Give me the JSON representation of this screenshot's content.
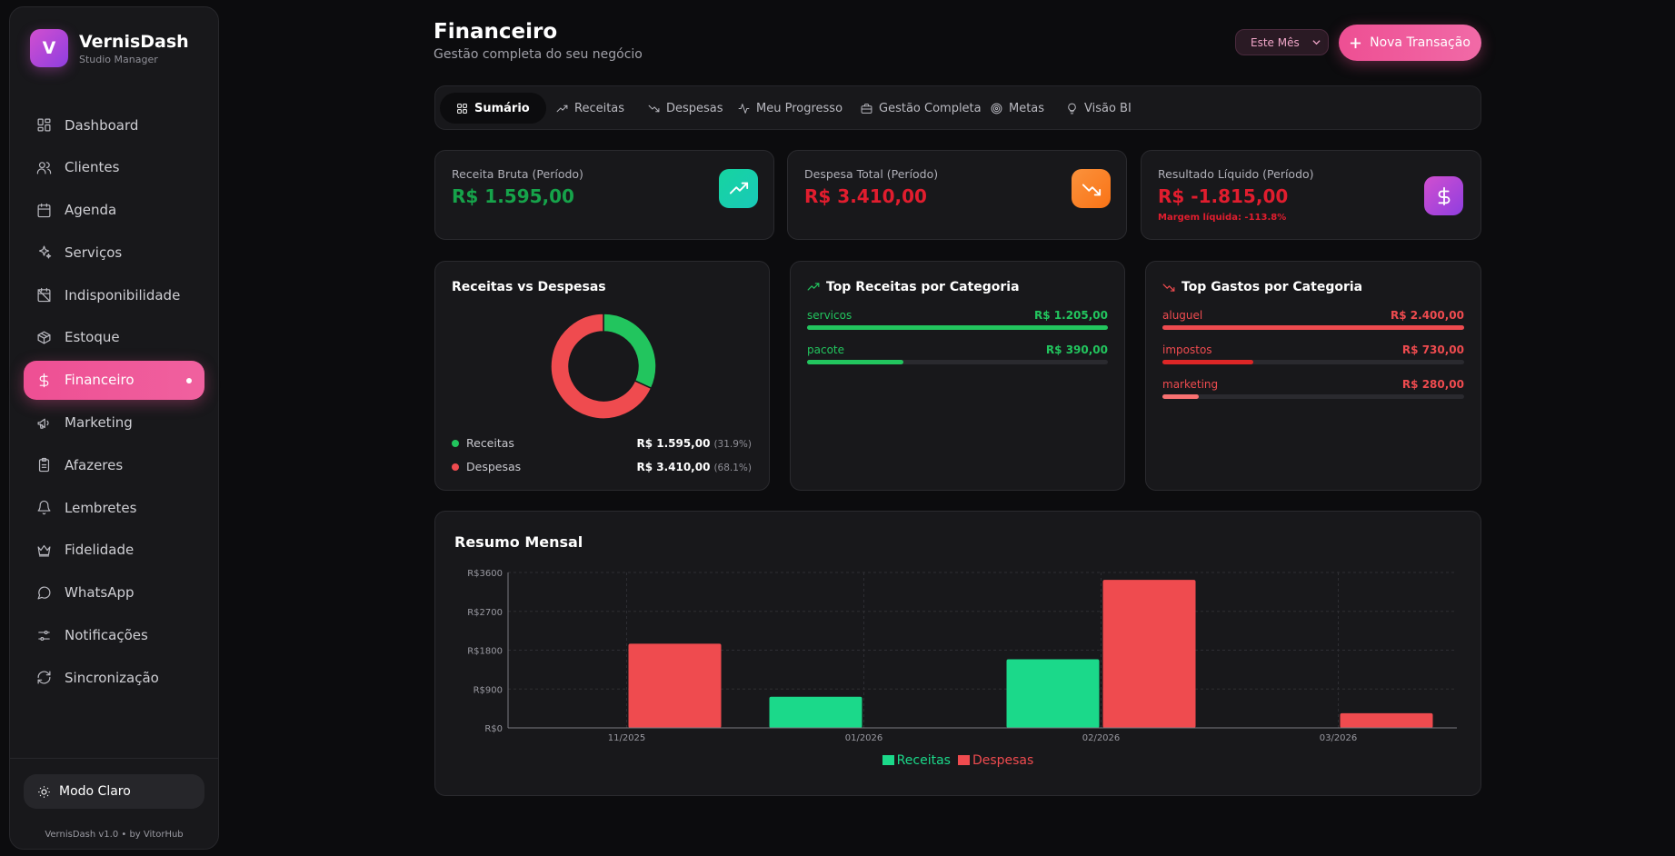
{
  "colors": {
    "accent": "#ee4f93",
    "income": "#1bd98a",
    "income_dark": "#22c55e",
    "expense": "#ef4b4f",
    "negative": "#e11d2e"
  },
  "brand": {
    "logo_letter": "V",
    "name": "VernisDash",
    "subtitle": "Studio Manager"
  },
  "sidebar": {
    "items": [
      {
        "label": "Dashboard",
        "icon": "grid-icon"
      },
      {
        "label": "Clientes",
        "icon": "users-icon"
      },
      {
        "label": "Agenda",
        "icon": "calendar-icon"
      },
      {
        "label": "Serviços",
        "icon": "sparkles-icon"
      },
      {
        "label": "Indisponibilidade",
        "icon": "calendar-off-icon"
      },
      {
        "label": "Estoque",
        "icon": "package-icon"
      },
      {
        "label": "Financeiro",
        "icon": "dollar-icon",
        "active": true
      },
      {
        "label": "Marketing",
        "icon": "megaphone-icon"
      },
      {
        "label": "Afazeres",
        "icon": "clipboard-icon"
      },
      {
        "label": "Lembretes",
        "icon": "bell-icon"
      },
      {
        "label": "Fidelidade",
        "icon": "crown-icon"
      },
      {
        "label": "WhatsApp",
        "icon": "message-circle-icon"
      },
      {
        "label": "Notificações",
        "icon": "sliders-icon"
      },
      {
        "label": "Sincronização",
        "icon": "refresh-icon"
      }
    ],
    "mode_label": "Modo Claro",
    "version": "VernisDash v1.0 • by VitorHub"
  },
  "header": {
    "title": "Financeiro",
    "subtitle": "Gestão completa do seu negócio",
    "period": "Este Mês",
    "new_transaction": "Nova Transação"
  },
  "tabs": [
    {
      "label": "Sumário",
      "icon": "layout-icon",
      "active": true
    },
    {
      "label": "Receitas",
      "icon": "trending-up-icon"
    },
    {
      "label": "Despesas",
      "icon": "trending-down-icon"
    },
    {
      "label": "Meu Progresso",
      "icon": "activity-icon"
    },
    {
      "label": "Gestão Completa",
      "icon": "briefcase-icon"
    },
    {
      "label": "Metas",
      "icon": "target-icon"
    },
    {
      "label": "Visão BI",
      "icon": "lightbulb-icon"
    }
  ],
  "stats": {
    "revenue": {
      "label": "Receita Bruta (Período)",
      "value": "R$ 1.595,00"
    },
    "expense": {
      "label": "Despesa Total (Período)",
      "value": "R$ 3.410,00"
    },
    "net": {
      "label": "Resultado Líquido (Período)",
      "value": "R$ -1.815,00",
      "note": "Margem líquida: -113.8%"
    }
  },
  "donut": {
    "title": "Receitas vs Despesas",
    "items": [
      {
        "label": "Receitas",
        "value": "R$ 1.595,00",
        "pct": "(31.9%)",
        "share": 0.319
      },
      {
        "label": "Despesas",
        "value": "R$ 3.410,00",
        "pct": "(68.1%)",
        "share": 0.681
      }
    ]
  },
  "top_income": {
    "title": "Top Receitas por Categoria",
    "items": [
      {
        "name": "servicos",
        "value": "R$ 1.205,00",
        "fraction": 1.0
      },
      {
        "name": "pacote",
        "value": "R$ 390,00",
        "fraction": 0.32
      }
    ]
  },
  "top_expense": {
    "title": "Top Gastos por Categoria",
    "items": [
      {
        "name": "aluguel",
        "value": "R$ 2.400,00",
        "fraction": 1.0
      },
      {
        "name": "impostos",
        "value": "R$ 730,00",
        "fraction": 0.3
      },
      {
        "name": "marketing",
        "value": "R$ 280,00",
        "fraction": 0.12
      }
    ]
  },
  "monthly": {
    "title": "Resumo Mensal"
  },
  "chart_data": {
    "type": "bar",
    "categories": [
      "11/2025",
      "01/2026",
      "02/2026",
      "03/2026"
    ],
    "series": [
      {
        "name": "Receitas",
        "values": [
          0,
          720,
          1590,
          0
        ]
      },
      {
        "name": "Despesas",
        "values": [
          1950,
          0,
          3430,
          340
        ]
      }
    ],
    "y_ticks": [
      "R$0",
      "R$900",
      "R$1800",
      "R$2700",
      "R$3600"
    ],
    "ylim": [
      0,
      3600
    ],
    "grid": true,
    "legend": "bottom-center"
  }
}
